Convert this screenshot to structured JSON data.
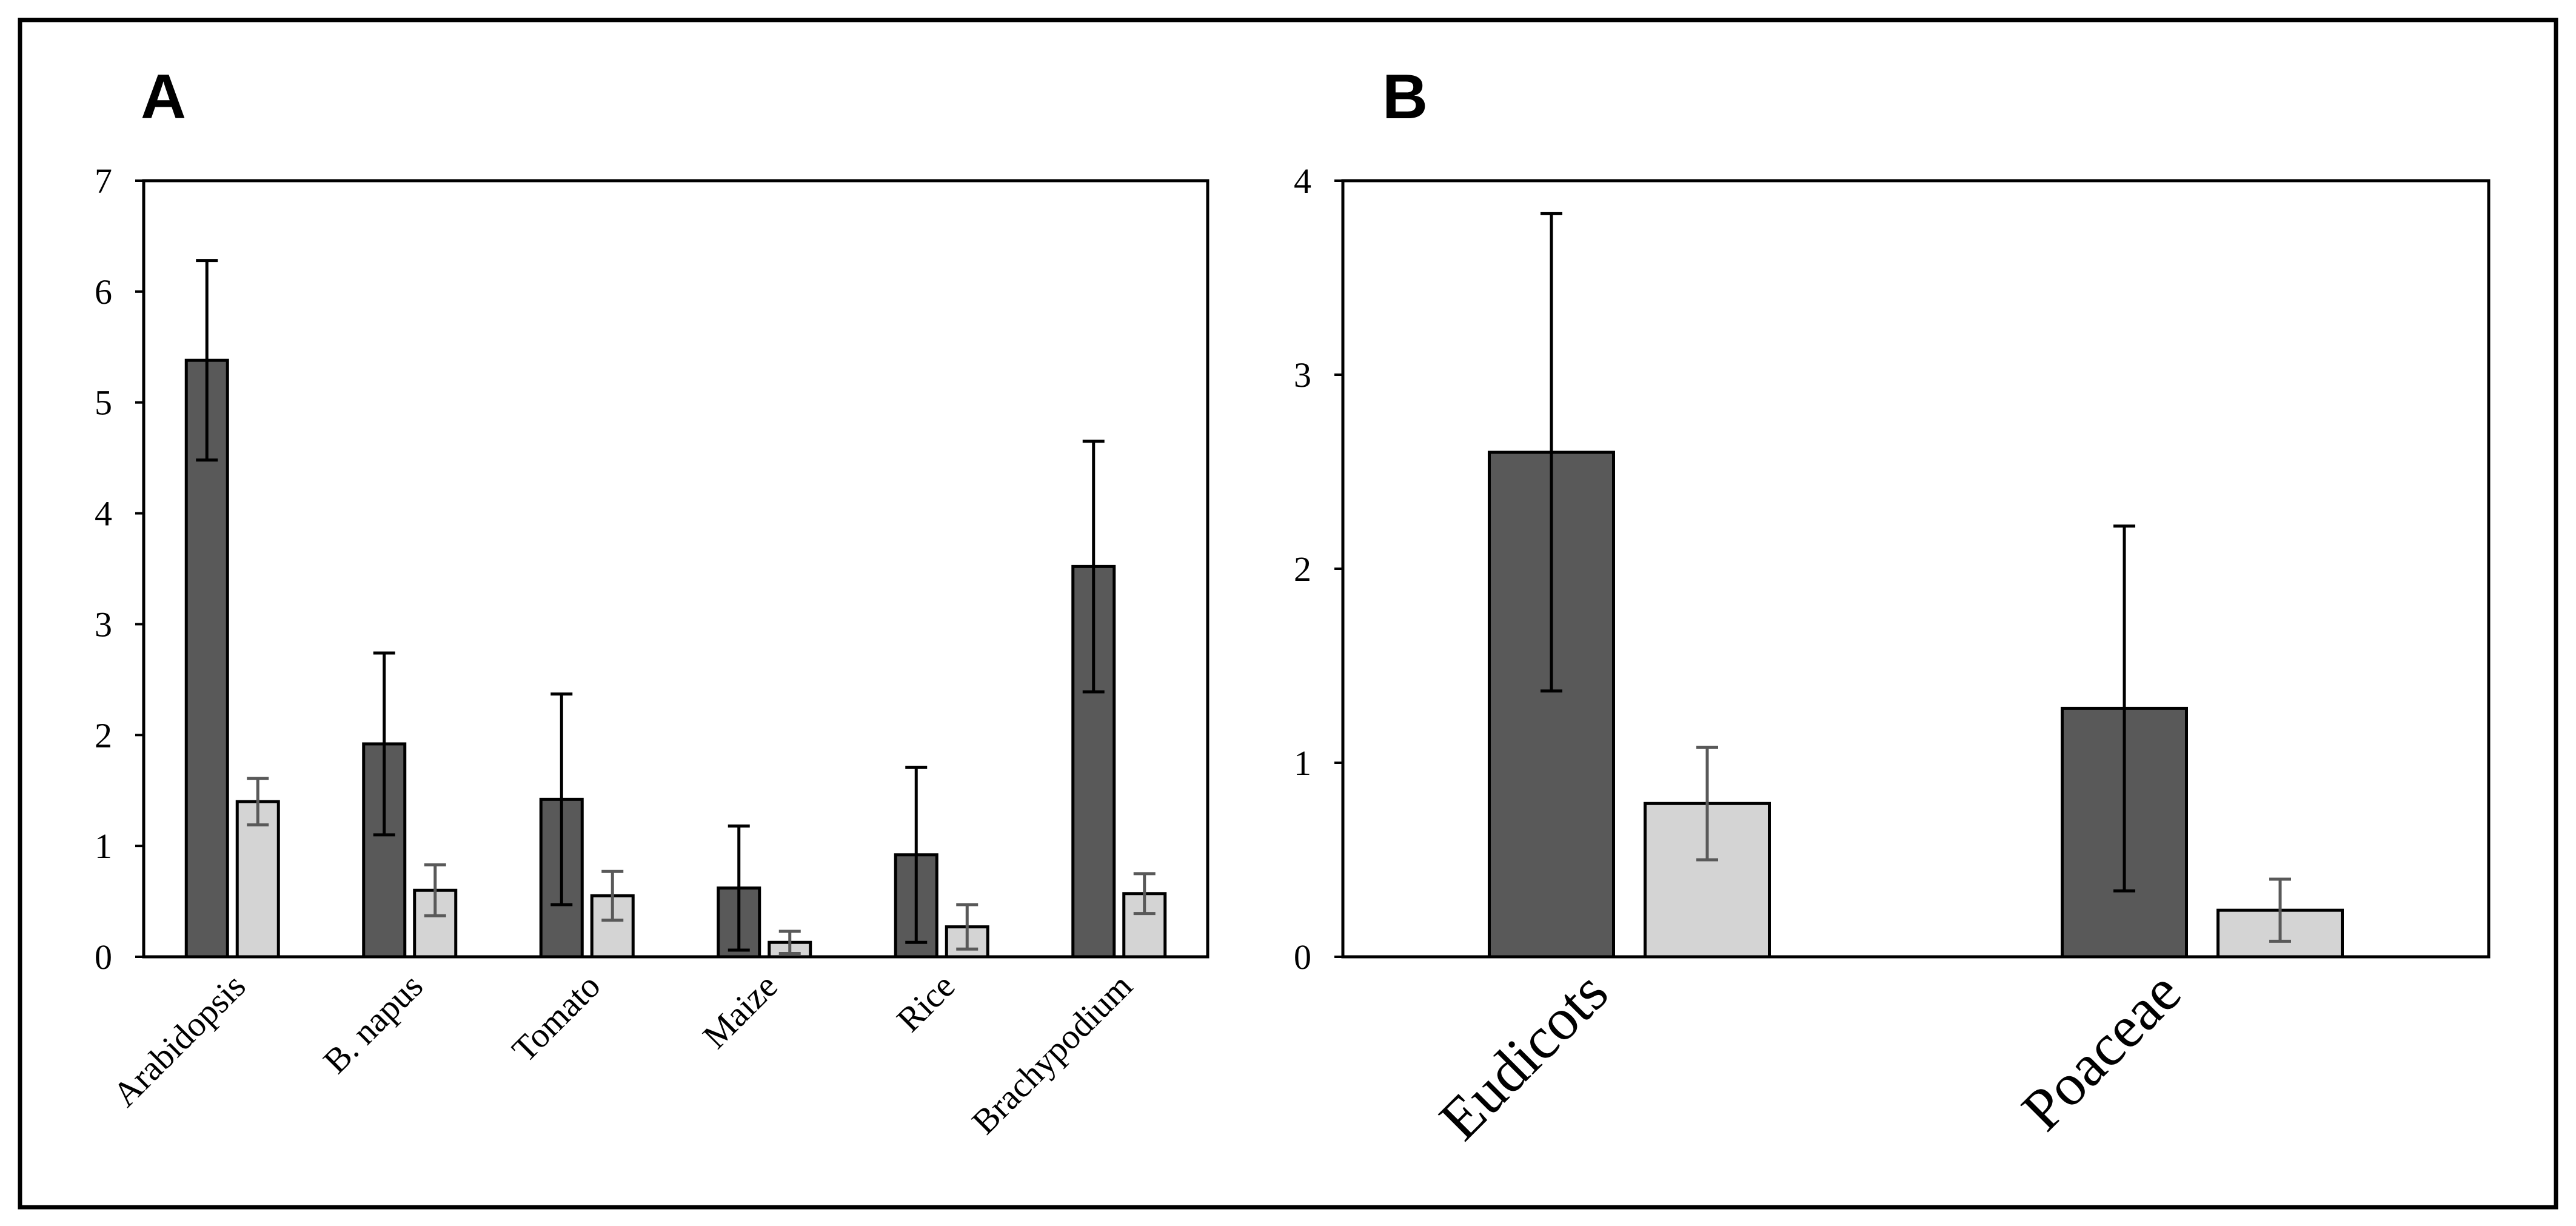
{
  "chart_data": [
    {
      "panel": "A",
      "type": "bar",
      "categories": [
        "Arabidopsis",
        "B. napus",
        "Tomato",
        "Maize",
        "Rice",
        "Brachypodium"
      ],
      "series": [
        {
          "name": "dark",
          "color": "#595959",
          "values": [
            5.38,
            1.92,
            1.42,
            0.62,
            0.92,
            3.52
          ],
          "errors": [
            0.9,
            0.82,
            0.95,
            0.56,
            0.79,
            1.13
          ]
        },
        {
          "name": "light",
          "color": "#d4d4d4",
          "error_color": "#595959",
          "values": [
            1.4,
            0.6,
            0.55,
            0.13,
            0.27,
            0.57
          ],
          "errors": [
            0.21,
            0.23,
            0.22,
            0.1,
            0.2,
            0.18
          ]
        }
      ],
      "ylim": [
        0,
        7
      ],
      "yticks": [
        0,
        1,
        2,
        3,
        4,
        5,
        6,
        7
      ],
      "title": "",
      "xlabel": "",
      "ylabel": ""
    },
    {
      "panel": "B",
      "type": "bar",
      "categories": [
        "Eudicots",
        "Poaceae"
      ],
      "series": [
        {
          "name": "dark",
          "color": "#595959",
          "values": [
            2.6,
            1.28
          ],
          "errors": [
            1.23,
            0.94
          ]
        },
        {
          "name": "light",
          "color": "#d4d4d4",
          "error_color": "#595959",
          "values": [
            0.79,
            0.24
          ],
          "errors": [
            0.29,
            0.16
          ]
        }
      ],
      "ylim": [
        0,
        4
      ],
      "yticks": [
        0,
        1,
        2,
        3,
        4
      ],
      "title": "",
      "xlabel": "",
      "ylabel": ""
    }
  ]
}
